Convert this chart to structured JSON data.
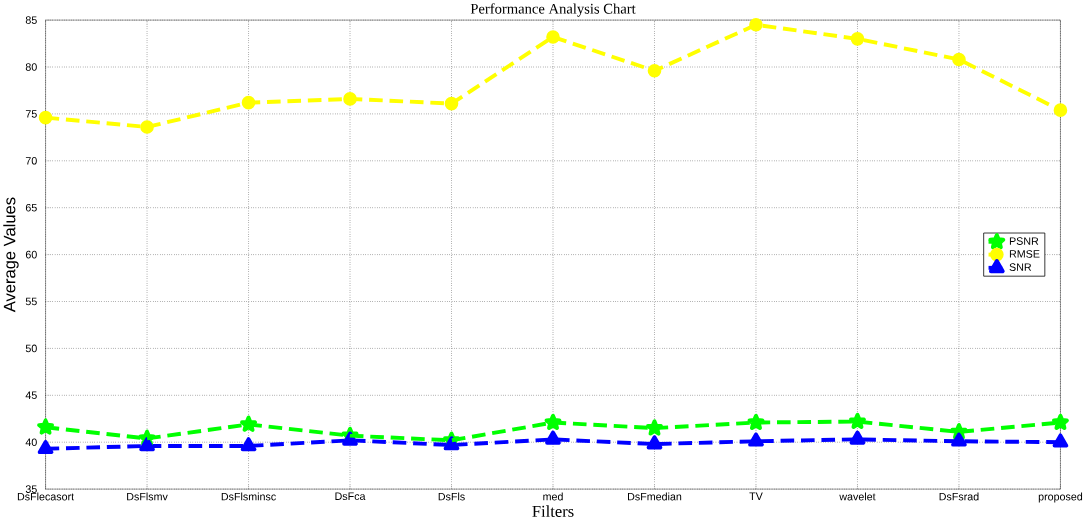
{
  "chart_data": {
    "type": "line",
    "title": "Performance Analysis Chart",
    "xlabel": "Filters",
    "ylabel": "Average Values",
    "categories": [
      "DsFlecasort",
      "DsFlsmv",
      "DsFlsminsc",
      "DsFca",
      "DsFls",
      "med",
      "DsFmedian",
      "TV",
      "wavelet",
      "DsFsrad",
      "proposed"
    ],
    "series": [
      {
        "name": "PSNR",
        "color": "#00ff00",
        "marker": "star",
        "values": [
          41.6,
          40.4,
          41.9,
          40.7,
          40.2,
          42.1,
          41.5,
          42.1,
          42.2,
          41.1,
          42.1
        ]
      },
      {
        "name": "RMSE",
        "color": "#ffff00",
        "marker": "circle",
        "values": [
          74.6,
          73.6,
          76.2,
          76.6,
          76.1,
          83.2,
          79.6,
          84.5,
          83.0,
          80.8,
          75.4
        ]
      },
      {
        "name": "SNR",
        "color": "#0000ff",
        "marker": "triangle",
        "values": [
          39.3,
          39.6,
          39.6,
          40.2,
          39.7,
          40.3,
          39.8,
          40.1,
          40.3,
          40.1,
          40.0
        ]
      }
    ],
    "ylim": [
      35,
      85
    ],
    "yticks": [
      35,
      40,
      45,
      50,
      55,
      60,
      65,
      70,
      75,
      80,
      85
    ],
    "grid": true,
    "legend": "right",
    "line_style": "dashed"
  }
}
